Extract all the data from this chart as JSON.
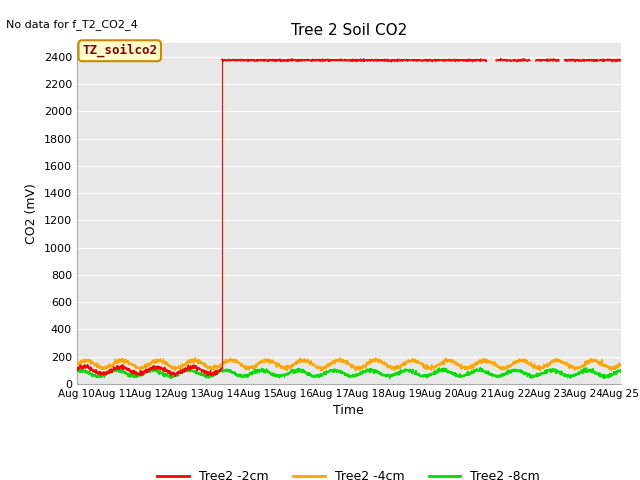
{
  "title": "Tree 2 Soil CO2",
  "subtitle": "No data for f_T2_CO2_4",
  "ylabel": "CO2 (mV)",
  "xlabel": "Time",
  "ylim": [
    0,
    2500
  ],
  "yticks": [
    0,
    200,
    400,
    600,
    800,
    1000,
    1200,
    1400,
    1600,
    1800,
    2000,
    2200,
    2400
  ],
  "xtick_labels": [
    "Aug 10",
    "Aug 11",
    "Aug 12",
    "Aug 13",
    "Aug 14",
    "Aug 15",
    "Aug 16",
    "Aug 17",
    "Aug 18",
    "Aug 19",
    "Aug 20",
    "Aug 21",
    "Aug 22",
    "Aug 23",
    "Aug 24",
    "Aug 25"
  ],
  "bg_color": "#e8e8e8",
  "fig_color": "#ffffff",
  "legend_label": "TZ_soilco2",
  "series": {
    "tree2_2cm": {
      "color": "#ff0000",
      "label": "Tree2 -2cm",
      "base": 100,
      "amplitude": 25,
      "spike_value": 2375
    },
    "tree2_4cm": {
      "color": "#ffa500",
      "label": "Tree2 -4cm",
      "base": 145,
      "amplitude": 28
    },
    "tree2_8cm": {
      "color": "#00dd00",
      "label": "Tree2 -8cm",
      "base": 80,
      "amplitude": 22
    }
  }
}
